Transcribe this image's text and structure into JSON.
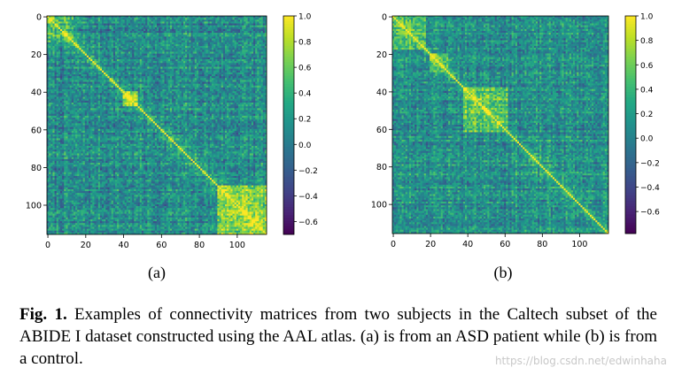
{
  "chart_data": [
    {
      "type": "heatmap",
      "panel_label": "(a)",
      "size": 116,
      "xticks": [
        0,
        20,
        40,
        60,
        80,
        100
      ],
      "yticks": [
        0,
        20,
        40,
        60,
        80,
        100
      ],
      "colorbar_ticks": [
        "1.0",
        "0.8",
        "0.6",
        "0.4",
        "0.2",
        "0.0",
        "−0.2",
        "−0.4",
        "−0.6"
      ],
      "colorbar_values": [
        1.0,
        0.8,
        0.6,
        0.4,
        0.2,
        0.0,
        -0.2,
        -0.4,
        -0.6
      ],
      "vmin": -0.7,
      "vmax": 1.0,
      "colormap": "viridis",
      "seed": 7,
      "blocks": [
        [
          0,
          14,
          0.25
        ],
        [
          40,
          48,
          0.45
        ],
        [
          90,
          116,
          0.55
        ]
      ]
    },
    {
      "type": "heatmap",
      "panel_label": "(b)",
      "size": 116,
      "xticks": [
        0,
        20,
        40,
        60,
        80,
        100
      ],
      "yticks": [
        0,
        20,
        40,
        60,
        80,
        100
      ],
      "colorbar_ticks": [
        "1.0",
        "0.8",
        "0.6",
        "0.4",
        "0.2",
        "0.0",
        "−0.2",
        "−0.4",
        "−0.6"
      ],
      "colorbar_values": [
        1.0,
        0.8,
        0.6,
        0.4,
        0.2,
        0.0,
        -0.2,
        -0.4,
        -0.6
      ],
      "vmin": -0.78,
      "vmax": 1.0,
      "colormap": "viridis",
      "seed": 23,
      "blocks": [
        [
          0,
          18,
          0.3
        ],
        [
          38,
          62,
          0.4
        ],
        [
          20,
          30,
          0.3
        ]
      ]
    }
  ],
  "caption": {
    "label": "Fig. 1.",
    "text": " Examples of connectivity matrices from two subjects in the Caltech subset of the ABIDE I dataset constructed using the AAL atlas. (a) is from an ASD patient while (b) is from a control."
  },
  "watermark": "https://blog.csdn.net/edwinhaha",
  "colors": {
    "axis": "#000000",
    "background": "#ffffff"
  }
}
